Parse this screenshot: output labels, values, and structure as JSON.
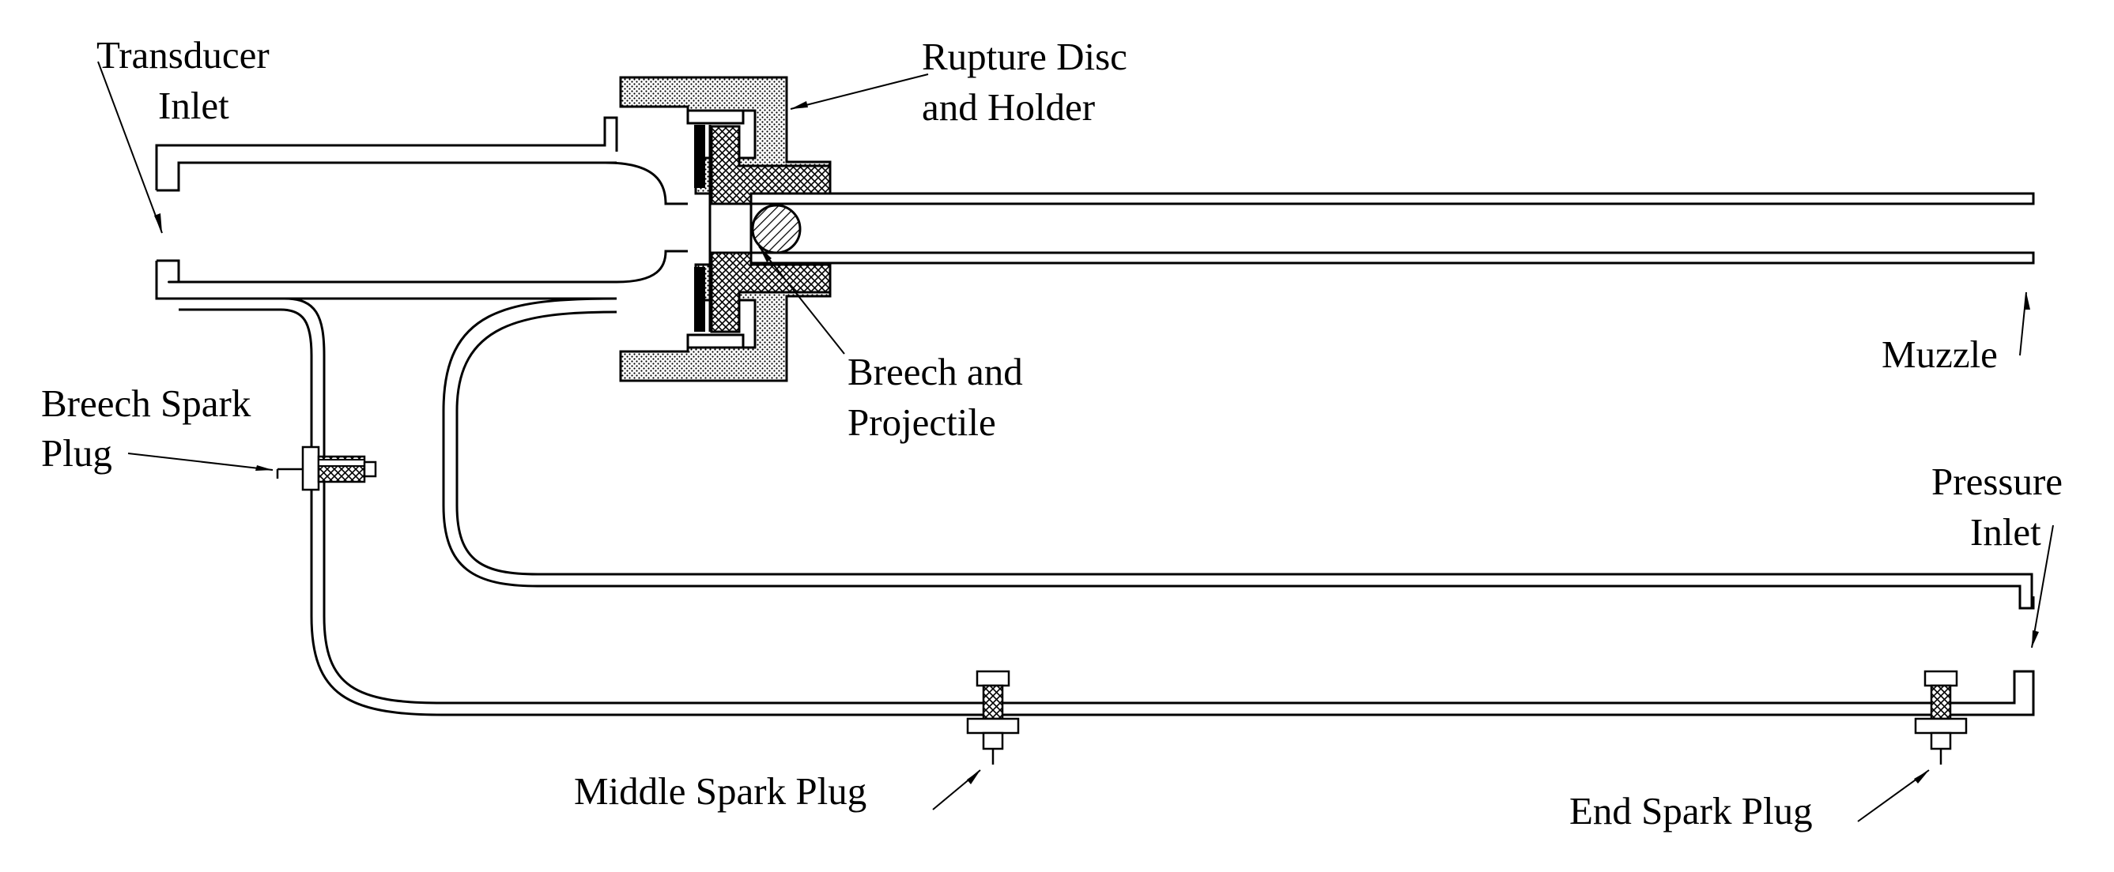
{
  "labels": {
    "transducer_inlet": [
      "Transducer",
      "Inlet"
    ],
    "rupture_disc": [
      "Rupture Disc",
      "and Holder"
    ],
    "breech_projectile": [
      "Breech and",
      "Projectile"
    ],
    "muzzle": [
      "Muzzle"
    ],
    "breech_spark_plug": [
      "Breech Spark",
      "Plug"
    ],
    "pressure_inlet": [
      "Pressure",
      "Inlet"
    ],
    "middle_spark_plug": [
      "Middle Spark Plug"
    ],
    "end_spark_plug": [
      "End Spark Plug"
    ]
  },
  "colors": {
    "line": "#000000",
    "background": "#ffffff"
  },
  "icons": [
    "spark-plug-icon",
    "projectile-icon",
    "rupture-disc-icon"
  ]
}
